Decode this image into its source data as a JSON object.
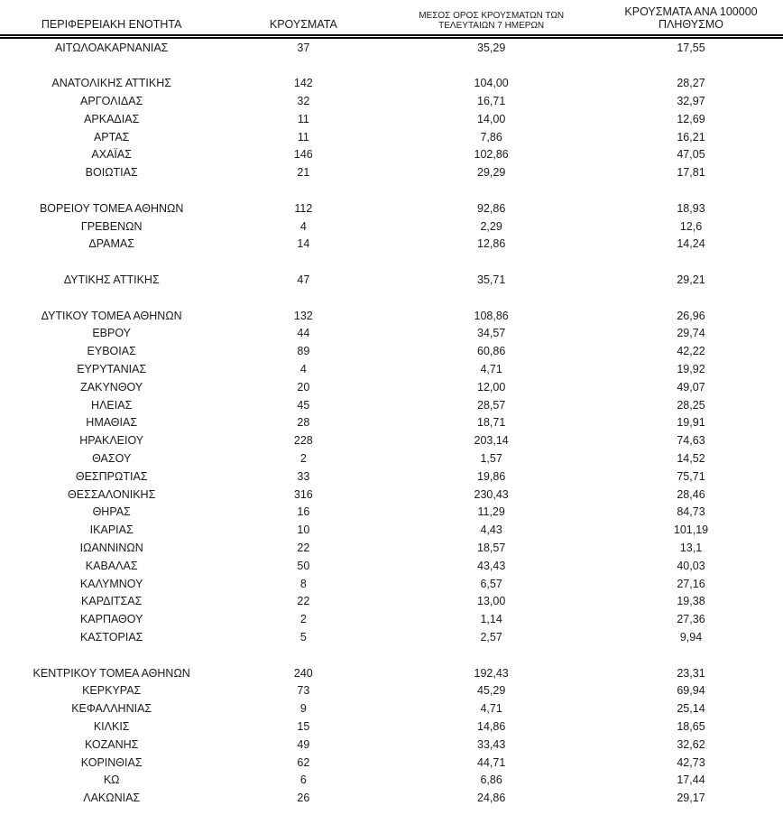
{
  "document": {
    "table": {
      "columns": [
        {
          "id": "region",
          "label": "ΠΕΡΙΦΕΡΕΙΑΚΗ ΕΝΟΤΗΤΑ"
        },
        {
          "id": "cases",
          "label": "ΚΡΟΥΣΜΑΤΑ"
        },
        {
          "id": "avg7",
          "label": "ΜΕΣΟΣ ΟΡΟΣ ΚΡΟΥΣΜΑΤΩΝ ΤΩΝ ΤΕΛΕΥΤΑΙΩΝ 7 ΗΜΕΡΩΝ"
        },
        {
          "id": "per100k",
          "label": "ΚΡΟΥΣΜΑΤΑ ΑΝΑ 100000 ΠΛΗΘΥΣΜΟ"
        }
      ],
      "rows": [
        {
          "region": "ΑΙΤΩΛΟΑΚΑΡΝΑΝΙΑΣ",
          "cases": "37",
          "avg7": "35,29",
          "per100k": "17,55"
        },
        {
          "spacer": true
        },
        {
          "region": "ΑΝΑΤΟΛΙΚΗΣ ΑΤΤΙΚΗΣ",
          "cases": "142",
          "avg7": "104,00",
          "per100k": "28,27"
        },
        {
          "region": "ΑΡΓΟΛΙΔΑΣ",
          "cases": "32",
          "avg7": "16,71",
          "per100k": "32,97"
        },
        {
          "region": "ΑΡΚΑΔΙΑΣ",
          "cases": "11",
          "avg7": "14,00",
          "per100k": "12,69"
        },
        {
          "region": "ΑΡΤΑΣ",
          "cases": "11",
          "avg7": "7,86",
          "per100k": "16,21"
        },
        {
          "region": "ΑΧΑΪΑΣ",
          "cases": "146",
          "avg7": "102,86",
          "per100k": "47,05"
        },
        {
          "region": "ΒΟΙΩΤΙΑΣ",
          "cases": "21",
          "avg7": "29,29",
          "per100k": "17,81"
        },
        {
          "spacer": true
        },
        {
          "region": "ΒΟΡΕΙΟΥ ΤΟΜΕΑ ΑΘΗΝΩΝ",
          "cases": "112",
          "avg7": "92,86",
          "per100k": "18,93"
        },
        {
          "region": "ΓΡΕΒΕΝΩΝ",
          "cases": "4",
          "avg7": "2,29",
          "per100k": "12,6"
        },
        {
          "region": "ΔΡΑΜΑΣ",
          "cases": "14",
          "avg7": "12,86",
          "per100k": "14,24"
        },
        {
          "spacer": true
        },
        {
          "region": "ΔΥΤΙΚΗΣ ΑΤΤΙΚΗΣ",
          "cases": "47",
          "avg7": "35,71",
          "per100k": "29,21"
        },
        {
          "spacer": true
        },
        {
          "region": "ΔΥΤΙΚΟΥ ΤΟΜΕΑ ΑΘΗΝΩΝ",
          "cases": "132",
          "avg7": "108,86",
          "per100k": "26,96"
        },
        {
          "region": "ΕΒΡΟΥ",
          "cases": "44",
          "avg7": "34,57",
          "per100k": "29,74"
        },
        {
          "region": "ΕΥΒΟΙΑΣ",
          "cases": "89",
          "avg7": "60,86",
          "per100k": "42,22"
        },
        {
          "region": "ΕΥΡΥΤΑΝΙΑΣ",
          "cases": "4",
          "avg7": "4,71",
          "per100k": "19,92"
        },
        {
          "region": "ΖΑΚΥΝΘΟΥ",
          "cases": "20",
          "avg7": "12,00",
          "per100k": "49,07"
        },
        {
          "region": "ΗΛΕΙΑΣ",
          "cases": "45",
          "avg7": "28,57",
          "per100k": "28,25"
        },
        {
          "region": "ΗΜΑΘΙΑΣ",
          "cases": "28",
          "avg7": "18,71",
          "per100k": "19,91"
        },
        {
          "region": "ΗΡΑΚΛΕΙΟΥ",
          "cases": "228",
          "avg7": "203,14",
          "per100k": "74,63"
        },
        {
          "region": "ΘΑΣΟΥ",
          "cases": "2",
          "avg7": "1,57",
          "per100k": "14,52"
        },
        {
          "region": "ΘΕΣΠΡΩΤΙΑΣ",
          "cases": "33",
          "avg7": "19,86",
          "per100k": "75,71"
        },
        {
          "region": "ΘΕΣΣΑΛΟΝΙΚΗΣ",
          "cases": "316",
          "avg7": "230,43",
          "per100k": "28,46"
        },
        {
          "region": "ΘΗΡΑΣ",
          "cases": "16",
          "avg7": "11,29",
          "per100k": "84,73"
        },
        {
          "region": "ΙΚΑΡΙΑΣ",
          "cases": "10",
          "avg7": "4,43",
          "per100k": "101,19"
        },
        {
          "region": "ΙΩΑΝΝΙΝΩΝ",
          "cases": "22",
          "avg7": "18,57",
          "per100k": "13,1"
        },
        {
          "region": "ΚΑΒΑΛΑΣ",
          "cases": "50",
          "avg7": "43,43",
          "per100k": "40,03"
        },
        {
          "region": "ΚΑΛΥΜΝΟΥ",
          "cases": "8",
          "avg7": "6,57",
          "per100k": "27,16"
        },
        {
          "region": "ΚΑΡΔΙΤΣΑΣ",
          "cases": "22",
          "avg7": "13,00",
          "per100k": "19,38"
        },
        {
          "region": "ΚΑΡΠΑΘΟΥ",
          "cases": "2",
          "avg7": "1,14",
          "per100k": "27,36"
        },
        {
          "region": "ΚΑΣΤΟΡΙΑΣ",
          "cases": "5",
          "avg7": "2,57",
          "per100k": "9,94"
        },
        {
          "spacer": true
        },
        {
          "region": "ΚΕΝΤΡΙΚΟΥ ΤΟΜΕΑ ΑΘΗΝΩΝ",
          "cases": "240",
          "avg7": "192,43",
          "per100k": "23,31"
        },
        {
          "region": "ΚΕΡΚΥΡΑΣ",
          "cases": "73",
          "avg7": "45,29",
          "per100k": "69,94"
        },
        {
          "region": "ΚΕΦΑΛΛΗΝΙΑΣ",
          "cases": "9",
          "avg7": "4,71",
          "per100k": "25,14"
        },
        {
          "region": "ΚΙΛΚΙΣ",
          "cases": "15",
          "avg7": "14,86",
          "per100k": "18,65"
        },
        {
          "region": "ΚΟΖΑΝΗΣ",
          "cases": "49",
          "avg7": "33,43",
          "per100k": "32,62"
        },
        {
          "region": "ΚΟΡΙΝΘΙΑΣ",
          "cases": "62",
          "avg7": "44,71",
          "per100k": "42,73"
        },
        {
          "region": "ΚΩ",
          "cases": "6",
          "avg7": "6,86",
          "per100k": "17,44"
        },
        {
          "region": "ΛΑΚΩΝΙΑΣ",
          "cases": "26",
          "avg7": "24,86",
          "per100k": "29,17"
        }
      ]
    },
    "colors": {
      "text": "#1a1a1a",
      "background": "#ffffff",
      "header_rule": "#000000"
    }
  }
}
